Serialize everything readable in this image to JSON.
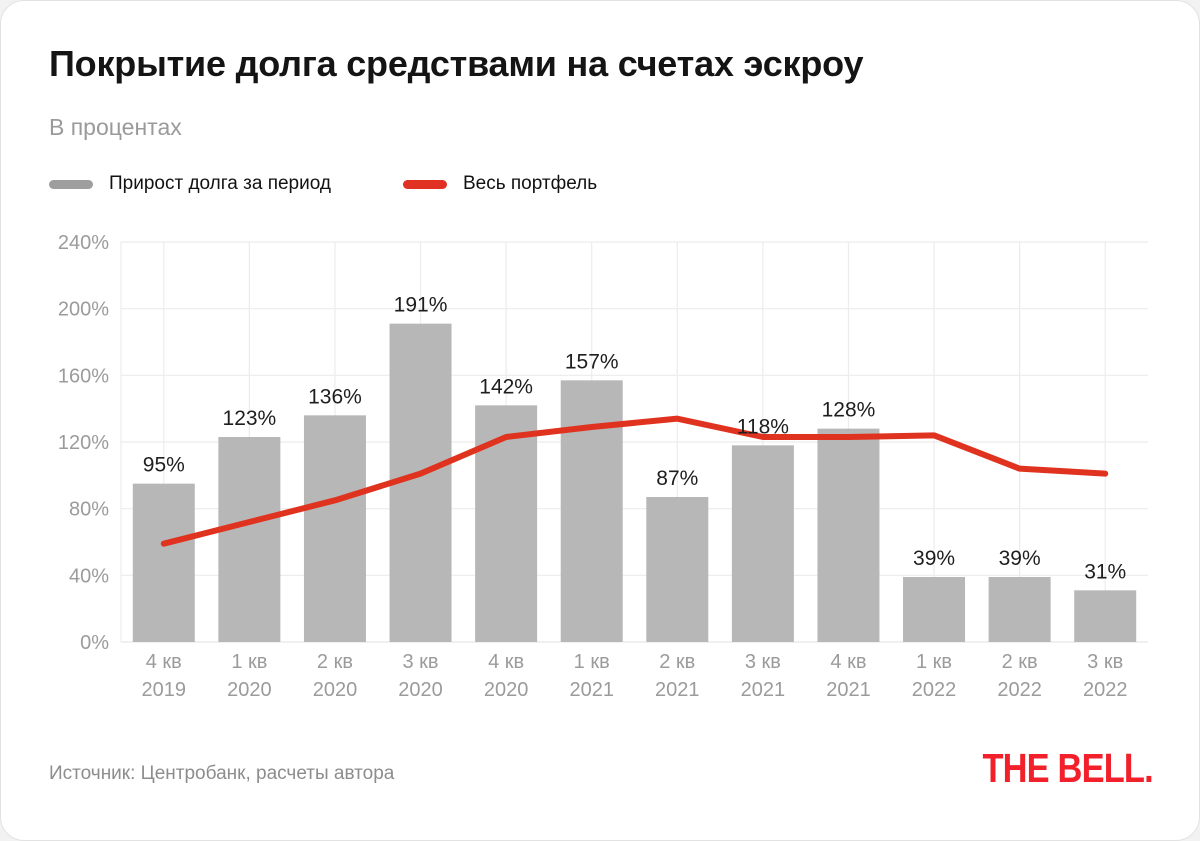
{
  "card": {
    "title": "Покрытие долга средствами на счетах эскроу",
    "subtitle": "В процентах",
    "source": "Источник: Центробанк, расчеты автора",
    "logo": "THE BELL."
  },
  "legend": [
    {
      "label": "Прирост долга за период",
      "color": "#9e9e9e",
      "marker": "bar-swatch"
    },
    {
      "label": "Весь портфель",
      "color": "#e03122",
      "marker": "line-swatch"
    }
  ],
  "colors": {
    "bar": "#b7b7b7",
    "line": "#e0331f",
    "grid": "#ececec",
    "axis_text": "#9b9b9b",
    "bar_label": "#1e1e1e",
    "logo_red": "#f2202a",
    "title_text": "#141414",
    "subtitle_text": "#9a9a9a",
    "source_text": "#8d8d8d"
  },
  "chart_data": {
    "type": "bar",
    "title": "Покрытие долга средствами на счетах эскроу",
    "ylabel": "В процентах",
    "categories": [
      {
        "q": "4 кв",
        "y": "2019"
      },
      {
        "q": "1 кв",
        "y": "2020"
      },
      {
        "q": "2 кв",
        "y": "2020"
      },
      {
        "q": "3 кв",
        "y": "2020"
      },
      {
        "q": "4 кв",
        "y": "2020"
      },
      {
        "q": "1 кв",
        "y": "2021"
      },
      {
        "q": "2 кв",
        "y": "2021"
      },
      {
        "q": "3 кв",
        "y": "2021"
      },
      {
        "q": "4 кв",
        "y": "2021"
      },
      {
        "q": "1 кв",
        "y": "2022"
      },
      {
        "q": "2 кв",
        "y": "2022"
      },
      {
        "q": "3 кв",
        "y": "2022"
      }
    ],
    "series": [
      {
        "name": "Прирост долга за период",
        "type": "bar",
        "values": [
          95,
          123,
          136,
          191,
          142,
          157,
          87,
          118,
          128,
          39,
          39,
          31
        ],
        "label_suffix": "%"
      },
      {
        "name": "Весь портфель",
        "type": "line",
        "values": [
          59,
          72,
          85,
          101,
          123,
          129,
          134,
          123,
          123,
          124,
          104,
          101
        ]
      }
    ],
    "ylim": [
      0,
      240
    ],
    "yticks": [
      0,
      40,
      80,
      120,
      160,
      200,
      240
    ],
    "ytick_suffix": "%",
    "grid": true,
    "legend_position": "top-left"
  }
}
